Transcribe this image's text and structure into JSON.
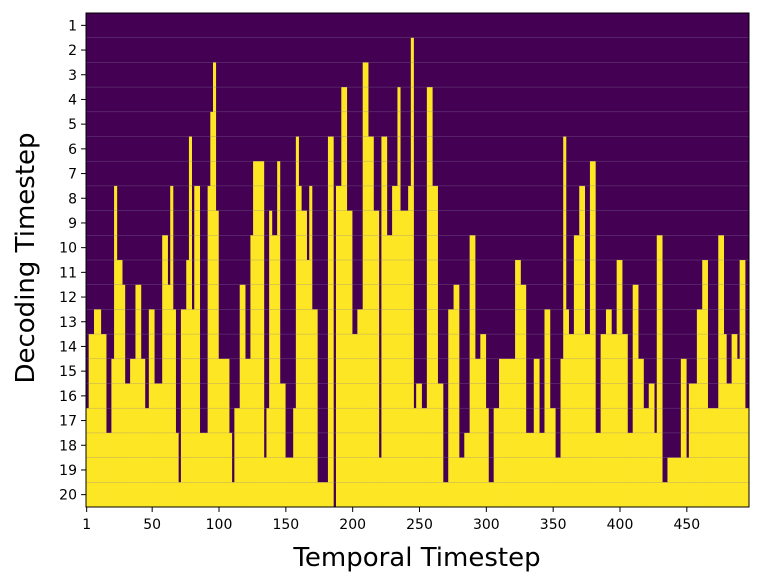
{
  "chart_data": {
    "type": "heatmap",
    "xlabel": "Temporal Timestep",
    "ylabel": "Decoding Timestep",
    "x_range": [
      1,
      496
    ],
    "y_range": [
      1,
      20
    ],
    "x_ticks": [
      1,
      50,
      100,
      150,
      200,
      250,
      300,
      350,
      400,
      450
    ],
    "y_ticks": [
      1,
      2,
      3,
      4,
      5,
      6,
      7,
      8,
      9,
      10,
      11,
      12,
      13,
      14,
      15,
      16,
      17,
      18,
      19,
      20
    ],
    "colors": {
      "empty": "#440154",
      "filled": "#fde725",
      "gridline": "#8a7aa0"
    },
    "grid": "horizontal",
    "cell_rule": "Each temporal timestep column is filled (yellow) from its first decoding timestep down to 20; rows above are dark purple.",
    "first_filled_decoding_step_keypoints": [
      [
        1,
        17
      ],
      [
        3,
        14
      ],
      [
        7,
        13
      ],
      [
        12,
        14
      ],
      [
        16,
        18
      ],
      [
        20,
        15
      ],
      [
        22,
        8
      ],
      [
        24,
        11
      ],
      [
        28,
        12
      ],
      [
        30,
        16
      ],
      [
        34,
        15
      ],
      [
        38,
        12
      ],
      [
        42,
        15
      ],
      [
        45,
        17
      ],
      [
        48,
        13
      ],
      [
        52,
        16
      ],
      [
        58,
        10
      ],
      [
        62,
        12
      ],
      [
        64,
        8
      ],
      [
        66,
        13
      ],
      [
        68,
        18
      ],
      [
        70,
        20
      ],
      [
        72,
        13
      ],
      [
        76,
        11
      ],
      [
        78,
        6
      ],
      [
        80,
        13
      ],
      [
        82,
        8
      ],
      [
        86,
        18
      ],
      [
        92,
        8
      ],
      [
        94,
        5
      ],
      [
        96,
        3
      ],
      [
        98,
        9
      ],
      [
        100,
        15
      ],
      [
        104,
        15
      ],
      [
        108,
        18
      ],
      [
        110,
        20
      ],
      [
        112,
        17
      ],
      [
        116,
        12
      ],
      [
        120,
        15
      ],
      [
        124,
        10
      ],
      [
        126,
        7
      ],
      [
        130,
        7
      ],
      [
        134,
        19
      ],
      [
        136,
        17
      ],
      [
        138,
        9
      ],
      [
        140,
        10
      ],
      [
        144,
        7
      ],
      [
        146,
        16
      ],
      [
        150,
        19
      ],
      [
        154,
        19
      ],
      [
        156,
        17
      ],
      [
        158,
        6
      ],
      [
        160,
        8
      ],
      [
        162,
        9
      ],
      [
        166,
        11
      ],
      [
        168,
        8
      ],
      [
        170,
        13
      ],
      [
        174,
        20
      ],
      [
        178,
        20
      ],
      [
        182,
        6
      ],
      [
        186,
        21
      ],
      [
        188,
        8
      ],
      [
        192,
        4
      ],
      [
        196,
        9
      ],
      [
        200,
        14
      ],
      [
        204,
        13
      ],
      [
        208,
        3
      ],
      [
        212,
        6
      ],
      [
        216,
        9
      ],
      [
        220,
        19
      ],
      [
        222,
        6
      ],
      [
        226,
        10
      ],
      [
        230,
        8
      ],
      [
        234,
        4
      ],
      [
        236,
        9
      ],
      [
        240,
        9
      ],
      [
        242,
        8
      ],
      [
        244,
        2
      ],
      [
        246,
        17
      ],
      [
        248,
        16
      ],
      [
        252,
        17
      ],
      [
        256,
        4
      ],
      [
        260,
        8
      ],
      [
        264,
        16
      ],
      [
        268,
        20
      ],
      [
        272,
        13
      ],
      [
        276,
        12
      ],
      [
        280,
        19
      ],
      [
        284,
        18
      ],
      [
        288,
        10
      ],
      [
        292,
        15
      ],
      [
        296,
        14
      ],
      [
        300,
        17
      ],
      [
        302,
        20
      ],
      [
        306,
        17
      ],
      [
        310,
        15
      ],
      [
        314,
        15
      ],
      [
        318,
        15
      ],
      [
        322,
        11
      ],
      [
        326,
        12
      ],
      [
        330,
        18
      ],
      [
        336,
        15
      ],
      [
        340,
        18
      ],
      [
        344,
        13
      ],
      [
        348,
        17
      ],
      [
        352,
        19
      ],
      [
        356,
        15
      ],
      [
        358,
        6
      ],
      [
        360,
        13
      ],
      [
        362,
        14
      ],
      [
        366,
        10
      ],
      [
        370,
        8
      ],
      [
        374,
        14
      ],
      [
        378,
        7
      ],
      [
        382,
        18
      ],
      [
        386,
        14
      ],
      [
        390,
        13
      ],
      [
        394,
        14
      ],
      [
        398,
        11
      ],
      [
        402,
        14
      ],
      [
        406,
        18
      ],
      [
        410,
        12
      ],
      [
        414,
        15
      ],
      [
        418,
        17
      ],
      [
        422,
        16
      ],
      [
        426,
        18
      ],
      [
        428,
        10
      ],
      [
        432,
        20
      ],
      [
        436,
        19
      ],
      [
        440,
        19
      ],
      [
        446,
        15
      ],
      [
        450,
        19
      ],
      [
        452,
        16
      ],
      [
        458,
        13
      ],
      [
        462,
        11
      ],
      [
        466,
        17
      ],
      [
        470,
        17
      ],
      [
        474,
        10
      ],
      [
        478,
        14
      ],
      [
        480,
        16
      ],
      [
        484,
        14
      ],
      [
        488,
        15
      ],
      [
        490,
        11
      ],
      [
        494,
        17
      ],
      [
        496,
        17
      ]
    ]
  }
}
